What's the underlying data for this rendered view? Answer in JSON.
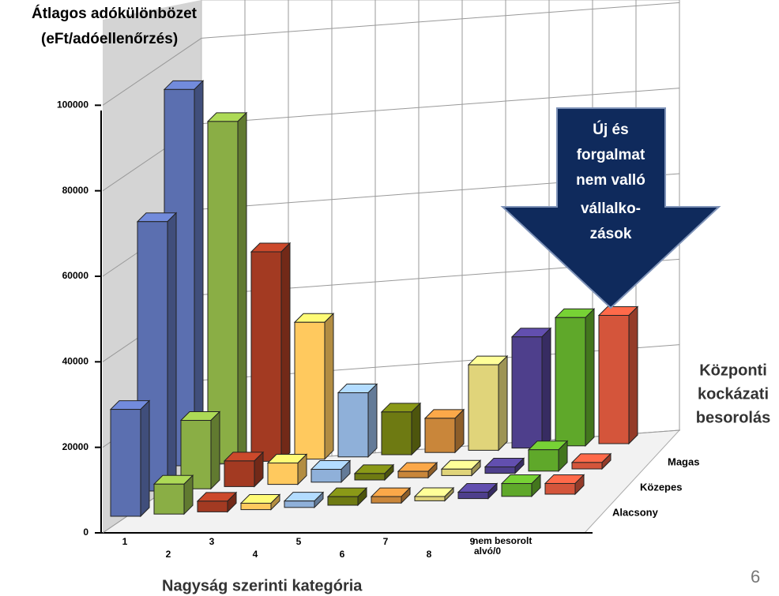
{
  "chart_data": {
    "type": "bar3d",
    "ylabel": [
      "Átlagos adókülönbözet",
      "(eFt/adóellenőrzés)"
    ],
    "xlabel": "Nagyság szerinti kategória",
    "zlabel": [
      "Központi",
      "kockázati",
      "besorolás"
    ],
    "annotation": [
      "Új és",
      "forgalmat",
      "nem valló",
      "vállalko-",
      "zások"
    ],
    "page_number": "6",
    "categories": [
      "1",
      "2",
      "3",
      "4",
      "5",
      "6",
      "7",
      "8",
      "9",
      "nem besorolt",
      "alvó/0"
    ],
    "colors": [
      "#5b6fb0",
      "#8aae45",
      "#a33a22",
      "#ffc95e",
      "#8fb0d9",
      "#6e7a12",
      "#c9863a",
      "#e0d47a",
      "#4e3f8c",
      "#5fa82a",
      "#d4553b"
    ],
    "series": [
      {
        "name": "Alacsony",
        "values": [
          25000,
          7000,
          2500,
          1500,
          1500,
          2000,
          1500,
          1000,
          1500,
          3000,
          2500
        ]
      },
      {
        "name": "Közepes",
        "values": [
          63000,
          16000,
          6000,
          5000,
          3000,
          1500,
          1500,
          1500,
          1500,
          5000,
          1500
        ]
      },
      {
        "name": "Magas",
        "values": [
          88000,
          80000,
          49000,
          32000,
          15000,
          10000,
          8000,
          20000,
          26000,
          30000,
          30000
        ]
      }
    ],
    "ylim": [
      0,
      120000
    ],
    "yticks": [
      0,
      20000,
      40000,
      60000,
      80000,
      100000
    ],
    "grid": true
  }
}
